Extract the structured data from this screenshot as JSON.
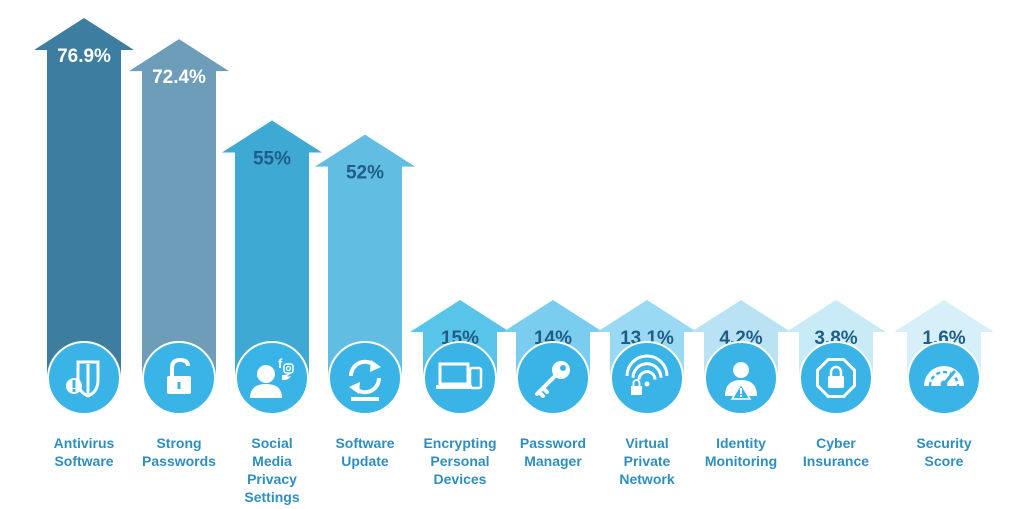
{
  "chart_data": {
    "type": "bar",
    "title": "",
    "xlabel": "",
    "ylabel": "",
    "ylim": [
      0,
      100
    ],
    "categories": [
      "Antivirus Software",
      "Strong Passwords",
      "Social Media Privacy Settings",
      "Software Update",
      "Encrypting Personal Devices",
      "Password Manager",
      "Virtual Private Network",
      "Identity Monitoring",
      "Cyber Insurance",
      "Security Score"
    ],
    "category_lines": [
      [
        "Antivirus",
        "Software"
      ],
      [
        "Strong",
        "Passwords"
      ],
      [
        "Social",
        "Media",
        "Privacy",
        "Settings"
      ],
      [
        "Software",
        "Update"
      ],
      [
        "Encrypting",
        "Personal",
        "Devices"
      ],
      [
        "Password",
        "Manager"
      ],
      [
        "Virtual",
        "Private",
        "Network"
      ],
      [
        "Identity",
        "Monitoring"
      ],
      [
        "Cyber",
        "Insurance"
      ],
      [
        "Security",
        "Score"
      ]
    ],
    "values": [
      76.9,
      72.4,
      55,
      52,
      15,
      14,
      13.1,
      4.2,
      3.8,
      1.6
    ],
    "value_labels": [
      "76.9%",
      "72.4%",
      "55%",
      "52%",
      "15%",
      "14%",
      "13.1%",
      "4.2%",
      "3.8%",
      "1.6%"
    ],
    "icons": [
      "shield-alert-icon",
      "unlocked-padlock-icon",
      "social-media-user-icon",
      "refresh-icon",
      "devices-icon",
      "key-icon",
      "wifi-lock-icon",
      "user-alert-icon",
      "padlock-octagon-icon",
      "gauge-icon"
    ],
    "colors": [
      "#3d7ea0",
      "#6d9db9",
      "#3ea9d3",
      "#62bde3",
      "#58c4ea",
      "#7acdef",
      "#9ad9f3",
      "#b9e3f5",
      "#c9ebf8",
      "#d6eff9"
    ],
    "icon_color": "#3ab4e6",
    "label_color": "#2e8fbf"
  }
}
